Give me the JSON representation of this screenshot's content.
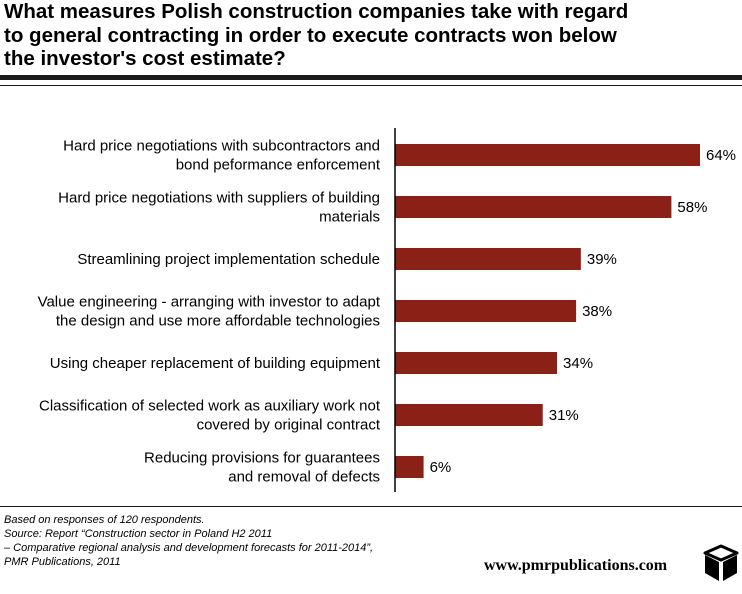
{
  "title_lines": [
    "What measures Polish construction companies take with regard",
    "to general contracting in order to execute contracts won below",
    "the investor's cost estimate?"
  ],
  "colors": {
    "bar": "#8b2116",
    "rule": "#1a1a1a",
    "axis": "#000000"
  },
  "chart_data": {
    "type": "bar",
    "orientation": "horizontal",
    "categories": [
      [
        "Hard price negotiations with subcontractors and",
        "bond peformance enforcement"
      ],
      [
        "Hard price negotiations with suppliers of building",
        "materials"
      ],
      [
        "Streamlining project implementation schedule"
      ],
      [
        "Value engineering - arranging with investor to adapt",
        "the design and use more affordable technologies"
      ],
      [
        "Using cheaper replacement of building equipment"
      ],
      [
        "Classification of selected work as auxiliary work not",
        "covered by original contract"
      ],
      [
        "Reducing provisions for guarantees",
        "and removal of defects"
      ]
    ],
    "values": [
      64,
      58,
      39,
      38,
      34,
      31,
      6
    ],
    "value_labels": [
      "64%",
      "58%",
      "39%",
      "38%",
      "34%",
      "31%",
      "6%"
    ],
    "unit": "%",
    "xlim": [
      0,
      64
    ],
    "grid": false,
    "legend": "none"
  },
  "notes": [
    "Based on responses of 120 respondents.",
    "Source: Report “Construction sector in Poland H2 2011",
    "– Comparative regional analysis and development forecasts for 2011-2014”,",
    "PMR Publications, 2011"
  ],
  "website": "www.pmrpublications.com",
  "logo_icon": "cube-icon"
}
